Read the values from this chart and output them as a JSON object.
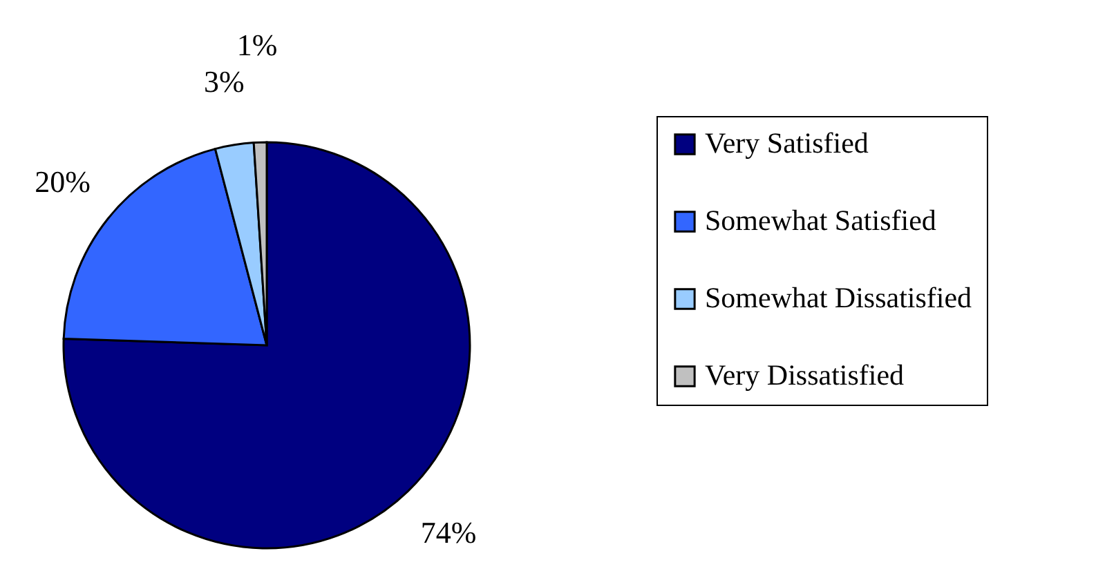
{
  "chart_data": {
    "type": "pie",
    "categories": [
      "Very Satisfied",
      "Somewhat Satisfied",
      "Somewhat Dissatisfied",
      "Very Dissatisfied"
    ],
    "values": [
      74,
      20,
      3,
      1
    ],
    "colors": [
      "#000080",
      "#3366ff",
      "#99ccff",
      "#c0c0c0"
    ],
    "value_labels": [
      "74%",
      "20%",
      "3%",
      "1%"
    ],
    "legend": "right"
  }
}
